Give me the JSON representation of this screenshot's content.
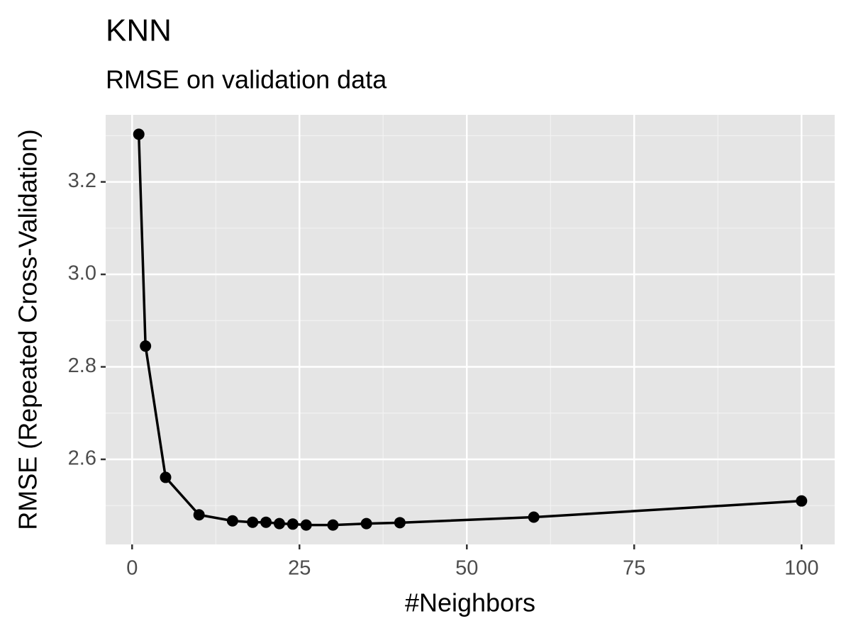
{
  "chart_data": {
    "type": "line",
    "title": "KNN",
    "subtitle": "RMSE on validation data",
    "x_label": "#Neighbors",
    "y_label": "RMSE (Repeated Cross-Validation)",
    "x": [
      1,
      2,
      5,
      10,
      15,
      18,
      20,
      22,
      24,
      26,
      30,
      35,
      40,
      60,
      100
    ],
    "series": [
      {
        "name": "RMSE",
        "color": "#000000",
        "values": [
          3.303,
          2.845,
          2.561,
          2.48,
          2.467,
          2.464,
          2.464,
          2.461,
          2.46,
          2.458,
          2.458,
          2.461,
          2.463,
          2.475,
          2.51
        ]
      }
    ],
    "xlim": [
      -3.95,
      104.95
    ],
    "xticks": [
      0,
      25,
      50,
      75,
      100
    ],
    "ylim": [
      2.416,
      3.345
    ],
    "yticks": [
      2.6,
      2.8,
      {
        "value": 3.0,
        "label": "3.0"
      },
      3.2
    ],
    "grid": true
  }
}
